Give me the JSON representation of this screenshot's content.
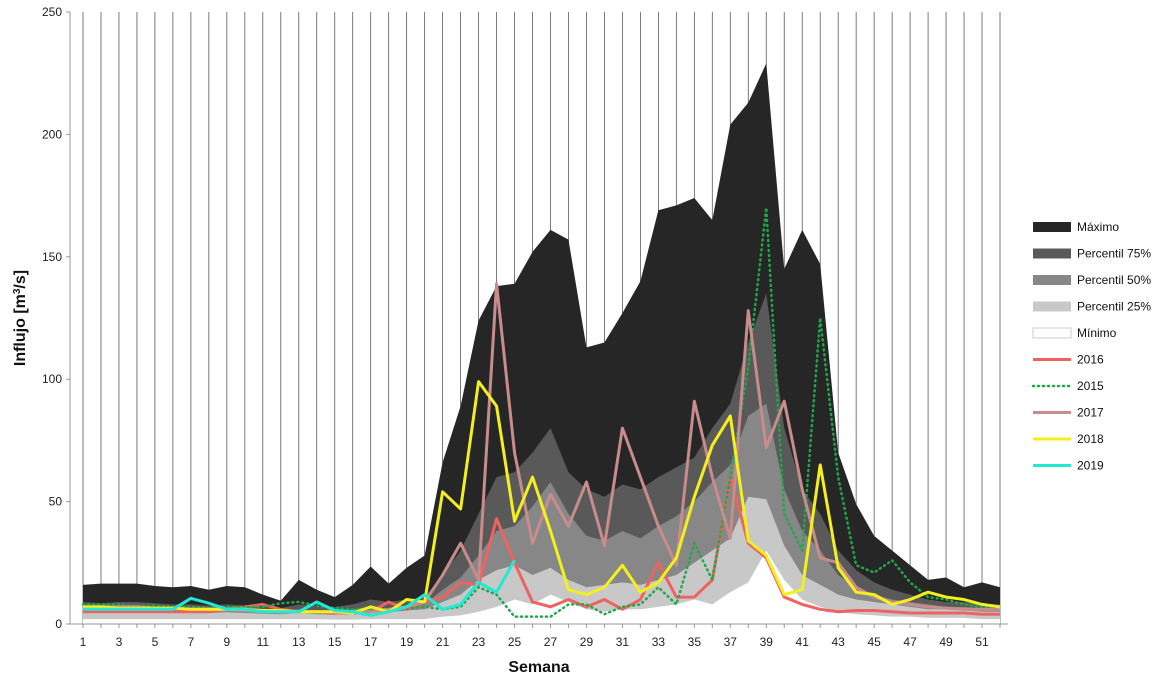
{
  "chart_data": {
    "type": "area",
    "xlabel": "Semana",
    "ylabel": "Influjo [m³/s]",
    "ylabel_parts": {
      "prefix": "Influjo [m",
      "sup": "3",
      "suffix": "/s]"
    },
    "xlim": [
      1,
      52
    ],
    "ylim": [
      0,
      250
    ],
    "y_ticks": [
      0,
      50,
      100,
      150,
      200,
      250
    ],
    "x_ticks": [
      1,
      3,
      5,
      7,
      9,
      11,
      13,
      15,
      17,
      19,
      21,
      23,
      25,
      27,
      29,
      31,
      33,
      35,
      37,
      39,
      41,
      43,
      45,
      47,
      49,
      51
    ],
    "grid": "vertical lines at each week",
    "legend_position": "right",
    "x": [
      1,
      2,
      3,
      4,
      5,
      6,
      7,
      8,
      9,
      10,
      11,
      12,
      13,
      14,
      15,
      16,
      17,
      18,
      19,
      20,
      21,
      22,
      23,
      24,
      25,
      26,
      27,
      28,
      29,
      30,
      31,
      32,
      33,
      34,
      35,
      36,
      37,
      38,
      39,
      40,
      41,
      42,
      43,
      44,
      45,
      46,
      47,
      48,
      49,
      50,
      51,
      52
    ],
    "bands": [
      {
        "name": "Máximo",
        "color": "#262626",
        "values": [
          16,
          16.5,
          16.5,
          16.5,
          15.5,
          15,
          15.5,
          14,
          15.5,
          15,
          12,
          9.5,
          18,
          14,
          11,
          16,
          23.5,
          16.5,
          23,
          28,
          66,
          89,
          124,
          138,
          139,
          152,
          161,
          157,
          113,
          115,
          127,
          140,
          169,
          171,
          174,
          165,
          204,
          213,
          229,
          145,
          161,
          147,
          70,
          49,
          36,
          30,
          24,
          18,
          19,
          15,
          17,
          15
        ]
      },
      {
        "name": "Percentil 75%",
        "color": "#595959",
        "values": [
          9,
          8.5,
          9,
          9,
          8.5,
          8,
          8,
          7.5,
          8,
          7.5,
          7,
          6.5,
          8,
          7.5,
          7,
          8,
          10,
          9,
          10,
          11,
          20,
          30,
          45,
          60,
          62,
          70,
          80,
          62,
          55,
          52,
          57,
          55,
          60,
          64,
          68,
          80,
          90,
          115,
          135,
          80,
          55,
          45,
          30,
          22,
          17,
          14,
          12,
          10,
          9,
          9,
          8,
          8
        ]
      },
      {
        "name": "Percentil 50%",
        "color": "#878787",
        "values": [
          7,
          7,
          7,
          7,
          7,
          6.5,
          6.5,
          6,
          6.5,
          6,
          5.5,
          5,
          6,
          5.5,
          5,
          6,
          7,
          6.5,
          7.5,
          8,
          14,
          19,
          28,
          38,
          40,
          48,
          58,
          45,
          36,
          34,
          38,
          35,
          40,
          44,
          50,
          58,
          65,
          85,
          90,
          55,
          38,
          30,
          20,
          15,
          12,
          10,
          9,
          8,
          7,
          7,
          6.5,
          6.5
        ]
      },
      {
        "name": "Percentil 25%",
        "color": "#c8c8c8",
        "values": [
          5,
          5,
          5,
          5,
          5,
          4.8,
          4.8,
          4.5,
          4.8,
          4.5,
          4.2,
          4,
          4.5,
          4,
          3.8,
          4.2,
          5,
          4.8,
          5.5,
          6,
          9,
          12,
          18,
          22,
          24,
          20,
          23,
          18,
          15,
          16,
          17,
          16,
          18,
          20,
          25,
          30,
          35,
          52,
          51,
          32,
          20,
          16,
          12,
          10,
          9,
          8,
          7,
          6,
          6,
          5.5,
          5,
          5
        ]
      },
      {
        "name": "Mínimo",
        "color": "#ffffff",
        "values": [
          2,
          2,
          2,
          2,
          2,
          2,
          2,
          2,
          2,
          2,
          2,
          2,
          2,
          2,
          1.8,
          1.8,
          2,
          2,
          2,
          2,
          3,
          3.5,
          5,
          7,
          10,
          8,
          12,
          9,
          6,
          5,
          6,
          6,
          7,
          8,
          10,
          8,
          13,
          17,
          30,
          18,
          10,
          7,
          5,
          4,
          3.5,
          3,
          3,
          2.5,
          2.5,
          2.5,
          2,
          2
        ]
      }
    ],
    "series": [
      {
        "name": "2016",
        "color": "#ee6262",
        "style": "solid",
        "x": [
          1,
          2,
          3,
          4,
          5,
          6,
          7,
          8,
          9,
          10,
          11,
          12,
          13,
          14,
          15,
          16,
          17,
          18,
          19,
          20,
          21,
          22,
          23,
          24,
          25,
          26,
          27,
          28,
          29,
          30,
          31,
          32,
          33,
          34,
          35,
          36,
          37,
          38,
          39,
          40,
          41,
          42,
          43,
          44,
          45,
          46,
          47,
          48,
          49,
          50,
          51,
          52
        ],
        "values": [
          5,
          5,
          5,
          5,
          5,
          5,
          5,
          5,
          6,
          7,
          8,
          6,
          5,
          5,
          4.5,
          4.5,
          5,
          9,
          6,
          9,
          11,
          17,
          16,
          43,
          25,
          9,
          7,
          10,
          7,
          10,
          6,
          10,
          25,
          11,
          11,
          18,
          60,
          33,
          27,
          11,
          8,
          6,
          5,
          5.5,
          5.5,
          5,
          4.5,
          4.5,
          4.5,
          4.5,
          4,
          4
        ]
      },
      {
        "name": "2015",
        "color": "#1fa84a",
        "style": "dotted",
        "x": [
          1,
          2,
          3,
          4,
          5,
          6,
          7,
          8,
          9,
          10,
          11,
          12,
          13,
          14,
          15,
          16,
          17,
          18,
          19,
          20,
          21,
          22,
          23,
          24,
          25,
          26,
          27,
          28,
          29,
          30,
          31,
          32,
          33,
          34,
          35,
          36,
          37,
          38,
          39,
          40,
          41,
          42,
          43,
          44,
          45,
          46,
          47,
          48,
          49,
          50,
          51,
          52
        ],
        "values": [
          8,
          8,
          8,
          7.5,
          7.5,
          7,
          7,
          6.5,
          7,
          7,
          7,
          8.5,
          9,
          7.5,
          6.5,
          6,
          6,
          6,
          6.5,
          7,
          6,
          7,
          15,
          12,
          3,
          3,
          3,
          8,
          8,
          4,
          7,
          8,
          15,
          8,
          33,
          18,
          60,
          105,
          170,
          45,
          30,
          125,
          60,
          24,
          21,
          26,
          17,
          11,
          10,
          8,
          7,
          6
        ]
      },
      {
        "name": "2017",
        "color": "#c88c8c",
        "style": "solid",
        "x": [
          1,
          2,
          3,
          4,
          5,
          6,
          7,
          8,
          9,
          10,
          11,
          12,
          13,
          14,
          15,
          16,
          17,
          18,
          19,
          20,
          21,
          22,
          23,
          24,
          25,
          26,
          27,
          28,
          29,
          30,
          31,
          32,
          33,
          34,
          35,
          36,
          37,
          38,
          39,
          40,
          41,
          42,
          43,
          44,
          45,
          46,
          47,
          48,
          49,
          50,
          51,
          52
        ],
        "values": [
          7,
          7,
          7,
          7,
          6.5,
          6.5,
          6,
          6,
          6,
          5.5,
          5,
          5,
          5,
          5,
          5,
          5,
          5,
          6,
          7,
          9,
          20,
          33,
          18,
          139,
          70,
          33,
          53,
          40,
          58,
          32,
          80,
          60,
          40,
          24,
          91,
          60,
          35,
          128,
          72,
          91,
          55,
          27,
          25,
          15,
          11,
          9,
          8,
          7,
          6.5,
          6,
          6,
          6
        ]
      },
      {
        "name": "2018",
        "color": "#f4ef1e",
        "style": "solid",
        "x": [
          1,
          2,
          3,
          4,
          5,
          6,
          7,
          8,
          9,
          10,
          11,
          12,
          13,
          14,
          15,
          16,
          17,
          18,
          19,
          20,
          21,
          22,
          23,
          24,
          25,
          26,
          27,
          28,
          29,
          30,
          31,
          32,
          33,
          34,
          35,
          36,
          37,
          38,
          39,
          40,
          41,
          42,
          43,
          44,
          45,
          46,
          47,
          48,
          49,
          50,
          51,
          52
        ],
        "values": [
          7,
          7,
          6.5,
          6.5,
          6.5,
          6.5,
          6,
          6,
          6,
          6,
          5.5,
          5.5,
          5,
          5,
          5,
          4.5,
          7,
          5,
          10,
          9,
          54,
          47,
          99,
          89,
          42,
          60,
          38,
          14,
          12,
          15,
          24,
          13,
          17,
          27,
          52,
          73,
          85,
          34,
          28,
          12,
          14,
          65,
          23,
          13,
          12,
          8,
          10,
          13,
          11,
          10,
          8,
          7
        ]
      },
      {
        "name": "2019",
        "color": "#22e8d4",
        "style": "solid",
        "x": [
          1,
          2,
          3,
          4,
          5,
          6,
          7,
          8,
          9,
          10,
          11,
          12,
          13,
          14,
          15,
          16,
          17,
          18,
          19,
          20,
          21,
          22,
          23,
          24,
          25
        ],
        "values": [
          6,
          6,
          6,
          6,
          6,
          6,
          10.5,
          8.5,
          6,
          6,
          5,
          5,
          5,
          9,
          5.5,
          5,
          3.5,
          5,
          7,
          12,
          6,
          8,
          17,
          13,
          26
        ]
      }
    ]
  }
}
